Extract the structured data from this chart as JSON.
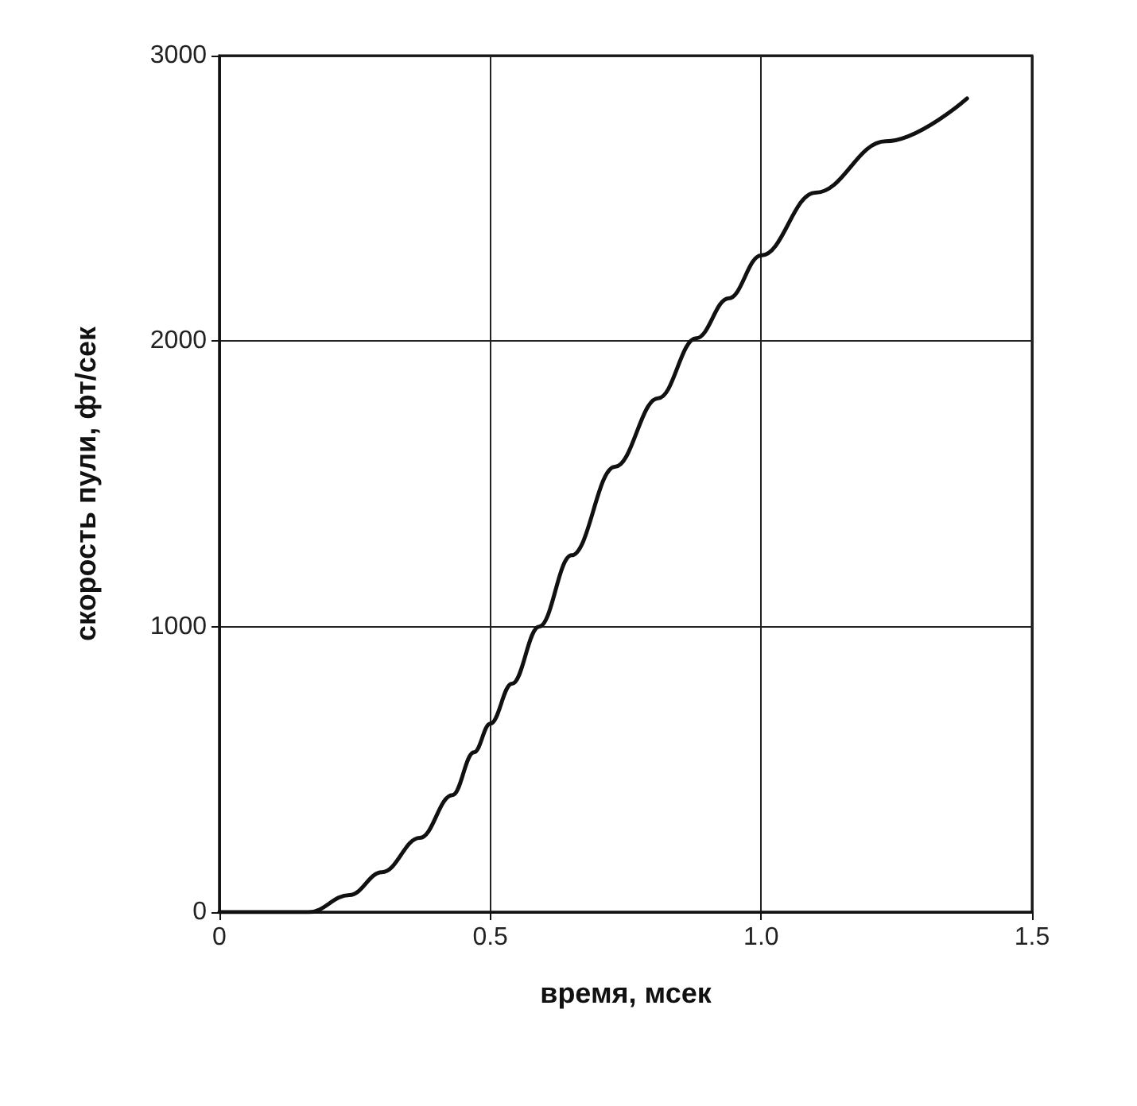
{
  "chart_data": {
    "type": "line",
    "xlabel": "время, мсек",
    "ylabel": "скорость пули, фт/сек",
    "x": [
      0,
      0.1,
      0.165,
      0.24,
      0.3,
      0.37,
      0.43,
      0.47,
      0.5,
      0.54,
      0.59,
      0.65,
      0.73,
      0.81,
      0.88,
      0.94,
      1.0,
      1.1,
      1.23,
      1.38
    ],
    "series": [
      {
        "color": "#111111",
        "values": [
          0,
          0,
          0,
          60,
          140,
          260,
          410,
          560,
          660,
          800,
          1000,
          1250,
          1560,
          1800,
          2010,
          2150,
          2300,
          2520,
          2700,
          2850
        ]
      }
    ],
    "xlim": [
      0,
      1.5
    ],
    "xticks": [
      0,
      {
        "value": 0.5,
        "label": "0.5"
      },
      {
        "value": 1,
        "label": "1.0"
      },
      {
        "value": 1.5,
        "label": "1.5"
      }
    ],
    "ylim": [
      0,
      3000
    ],
    "yticks": [
      0,
      1000,
      2000,
      3000
    ],
    "grid": true,
    "marker": "none",
    "line_style": "solid"
  }
}
